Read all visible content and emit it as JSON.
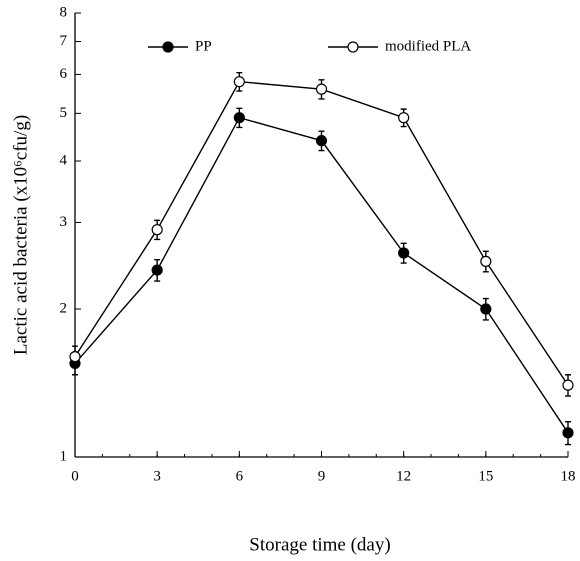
{
  "chart_data": {
    "type": "line",
    "ylabel": "Lactic acid bacteria (x10⁶cfu/g)",
    "xlabel": "Storage time (day)",
    "x": [
      0,
      3,
      6,
      9,
      12,
      15,
      18
    ],
    "series": [
      {
        "name": "PP",
        "color": "#000000",
        "marker_fill": "#000000",
        "values": [
          1.55,
          2.4,
          4.9,
          4.4,
          2.6,
          2.0,
          1.12
        ],
        "errors": [
          0.08,
          0.12,
          0.22,
          0.2,
          0.12,
          0.1,
          0.06
        ]
      },
      {
        "name": "modified PLA",
        "color": "#000000",
        "marker_fill": "#ffffff",
        "values": [
          1.6,
          2.9,
          5.8,
          5.6,
          4.9,
          2.5,
          1.4
        ],
        "errors": [
          0.08,
          0.13,
          0.25,
          0.25,
          0.2,
          0.12,
          0.07
        ]
      }
    ],
    "xlim": [
      0,
      18
    ],
    "xticks": [
      0,
      3,
      6,
      9,
      12,
      15,
      18
    ],
    "ylim": [
      1,
      8
    ],
    "yticks": [
      1,
      2,
      3,
      4,
      5,
      6,
      7,
      8
    ],
    "yscale": "log",
    "grid": false,
    "legend": "top"
  }
}
